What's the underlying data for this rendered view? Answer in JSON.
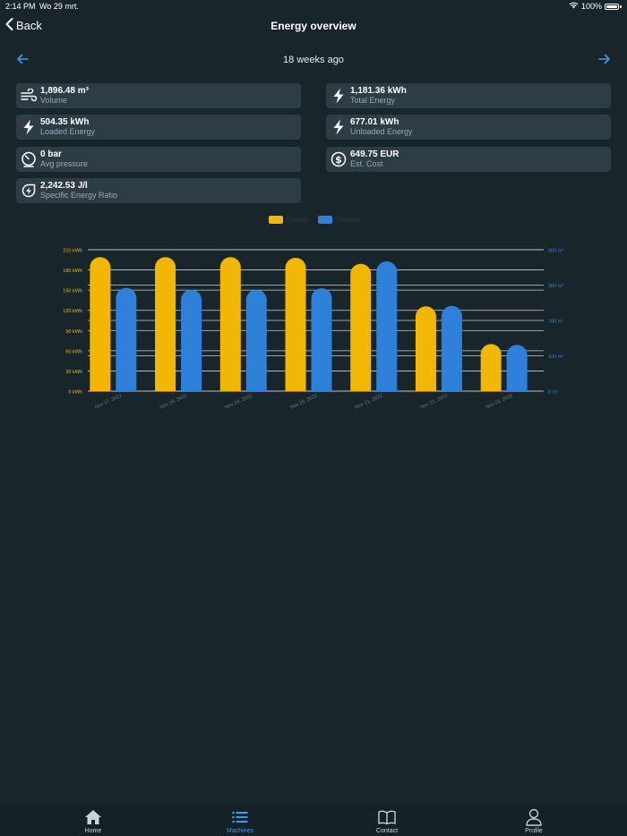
{
  "status_bar": {
    "time": "2:14 PM",
    "date": "Wo 29 mrt.",
    "battery": "100%"
  },
  "nav": {
    "back_label": "Back",
    "title": "Energy overview"
  },
  "period": {
    "label": "18 weeks ago"
  },
  "cards": {
    "volume": {
      "value": "1,896.48 m³",
      "label": "Volume",
      "icon": "wind-icon"
    },
    "total_energy": {
      "value": "1,181.36 kWh",
      "label": "Total Energy",
      "icon": "bolt-icon"
    },
    "loaded_energy": {
      "value": "504.35 kWh",
      "label": "Loaded Energy",
      "icon": "bolt-icon"
    },
    "unloaded_energy": {
      "value": "677.01 kWh",
      "label": "Unloaded Energy",
      "icon": "bolt-icon"
    },
    "avg_pressure": {
      "value": "0 bar",
      "label": "Avg pressure",
      "icon": "gauge-icon"
    },
    "est_cost": {
      "value": "649.75 EUR",
      "label": "Est. Cost",
      "icon": "dollar-icon"
    },
    "ser": {
      "value": "2,242.53 J/l",
      "label": "Specific Energy Ratio",
      "icon": "eco-bolt-icon"
    }
  },
  "colors": {
    "energy": "#f2b705",
    "volume": "#2f80d8",
    "accent": "#3a9bf0"
  },
  "chart_data": {
    "type": "bar",
    "categories": [
      "Nov 17, 2022",
      "Nov 18, 2022",
      "Nov 19, 2022",
      "Nov 20, 2022",
      "Nov 21, 2022",
      "Nov 22, 2022",
      "Nov 23, 2022"
    ],
    "series": [
      {
        "name": "Energy",
        "axis": "left",
        "values": [
          199,
          199,
          199,
          198,
          189,
          126,
          70
        ]
      },
      {
        "name": "Volume",
        "axis": "right",
        "values": [
          292,
          287,
          287,
          291,
          367,
          241,
          131
        ]
      }
    ],
    "left_axis": {
      "ticks": [
        "0 kWh",
        "30 kWh",
        "60 kWh",
        "90 kWh",
        "120 kWh",
        "150 kWh",
        "180 kWh",
        "210 kWh"
      ],
      "min": 0,
      "max": 210,
      "step": 30
    },
    "right_axis": {
      "ticks": [
        "0 m³",
        "100 m³",
        "200 m³",
        "300 m³",
        "400 m³"
      ],
      "min": 0,
      "max": 400,
      "step": 100
    },
    "legend": "top-center",
    "grid": true
  },
  "tabs": [
    {
      "label": "Home",
      "icon": "home-icon",
      "active": false
    },
    {
      "label": "Machines",
      "icon": "list-icon",
      "active": true
    },
    {
      "label": "Contact",
      "icon": "book-icon",
      "active": false
    },
    {
      "label": "Profile",
      "icon": "person-icon",
      "active": false
    }
  ]
}
